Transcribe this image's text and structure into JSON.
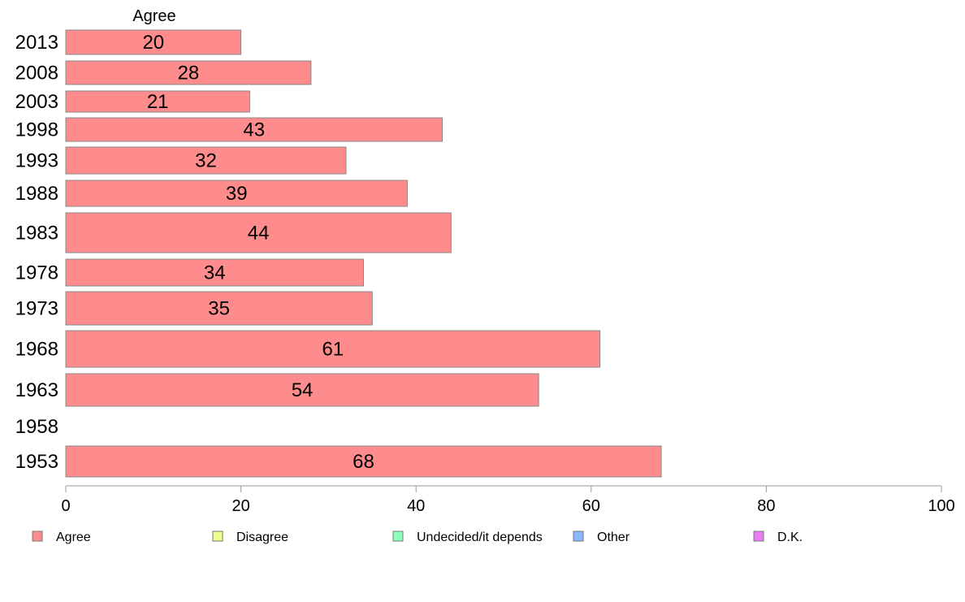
{
  "chart_data": {
    "type": "bar",
    "orientation": "horizontal",
    "series_header": "Agree",
    "categories": [
      "2013",
      "2008",
      "2003",
      "1998",
      "1993",
      "1988",
      "1983",
      "1978",
      "1973",
      "1968",
      "1963",
      "1958",
      "1953"
    ],
    "series": [
      {
        "name": "Agree",
        "color": "#ff8c8c",
        "values": [
          20,
          28,
          21,
          43,
          32,
          39,
          44,
          34,
          35,
          61,
          54,
          null,
          68
        ]
      }
    ],
    "data_labels": [
      "20",
      "28",
      "21",
      "43",
      "32",
      "39",
      "44",
      "34",
      "35",
      "61",
      "54",
      "",
      "68"
    ],
    "xlim": [
      0,
      100
    ],
    "x_ticks": [
      0,
      20,
      40,
      60,
      80,
      100
    ],
    "grid": false,
    "legend_position": "bottom",
    "legend": [
      {
        "label": "Agree",
        "color": "#ff8c8c"
      },
      {
        "label": "Disagree",
        "color": "#eeff8c"
      },
      {
        "label": "Undecided/it depends",
        "color": "#8cffbc"
      },
      {
        "label": "Other",
        "color": "#8cb8ff"
      },
      {
        "label": "D.K.",
        "color": "#ea7df0"
      }
    ],
    "bar_stroke": "#888888",
    "axis_color": "#999999"
  }
}
